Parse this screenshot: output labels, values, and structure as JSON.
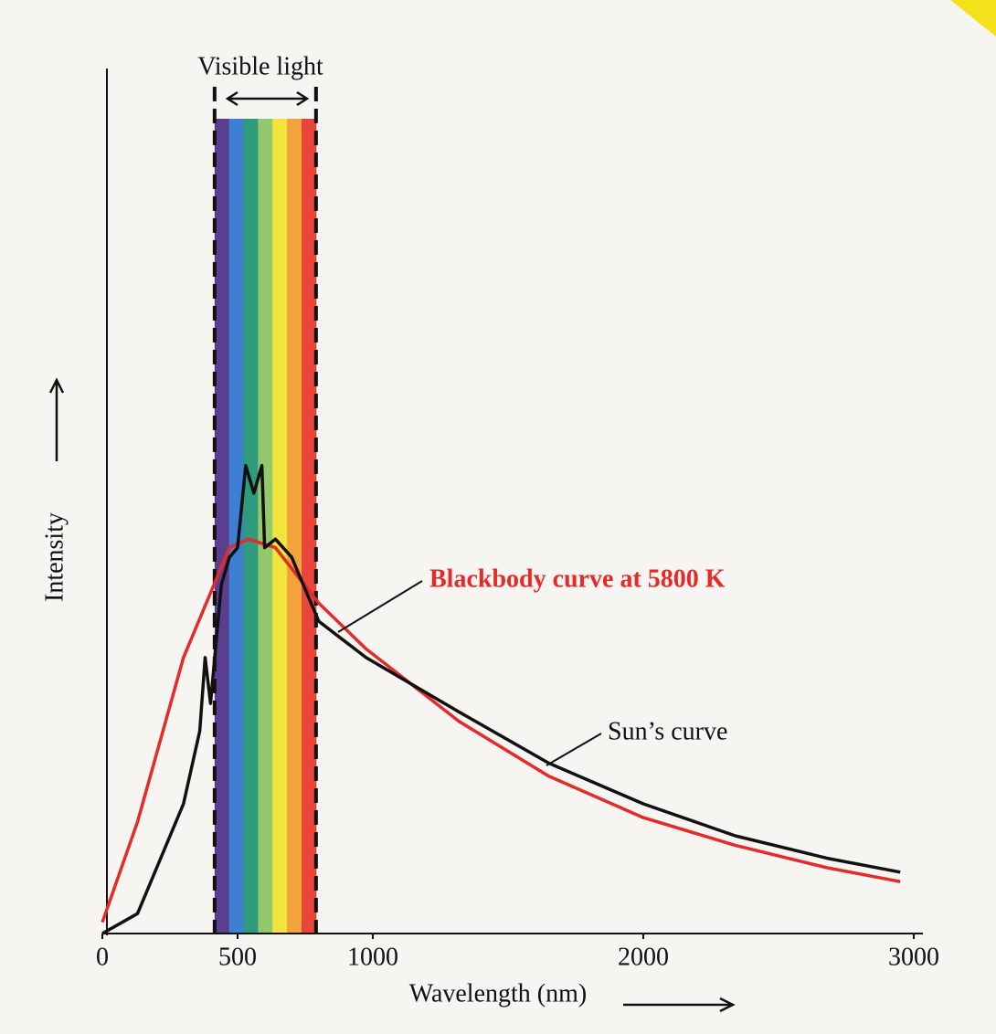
{
  "chart_data": {
    "type": "line",
    "x_label": "Wavelength (nm)",
    "y_label": "Intensity",
    "xlim": [
      0,
      3000
    ],
    "ylim": [
      0,
      100
    ],
    "xticks": [
      0,
      500,
      1000,
      2000,
      3000
    ],
    "visible_band": {
      "label": "Visible light",
      "xlim": [
        415,
        790
      ],
      "colors": [
        "#5b3f8f",
        "#3d7fd2",
        "#2f9a7c",
        "#93c96c",
        "#f1e43c",
        "#f4a23c",
        "#e6473a"
      ]
    },
    "series": [
      {
        "name": "Blackbody curve at 5800 K",
        "color": "#e52a2a",
        "x": [
          0,
          130,
          300,
          470,
          540,
          640,
          800,
          975,
          1320,
          1650,
          2000,
          2340,
          2680,
          2950
        ],
        "values": [
          1.3,
          12.9,
          31.9,
          44.6,
          45.6,
          44.6,
          38.2,
          32.9,
          24.5,
          18.2,
          13.4,
          10.2,
          7.6,
          6.0
        ]
      },
      {
        "name": "Sun’s curve",
        "color": "#111111",
        "x": [
          0,
          130,
          300,
          360,
          380,
          400,
          440,
          470,
          500,
          530,
          560,
          590,
          600,
          640,
          700,
          800,
          975,
          1320,
          1650,
          2000,
          2340,
          2680,
          2950
        ],
        "values": [
          0,
          2.3,
          15.0,
          23.4,
          31.9,
          26.6,
          40.3,
          43.5,
          44.6,
          54.1,
          50.9,
          54.1,
          44.6,
          45.6,
          43.5,
          36.1,
          31.9,
          25.6,
          19.7,
          15.0,
          11.3,
          8.7,
          7.1
        ]
      }
    ]
  }
}
